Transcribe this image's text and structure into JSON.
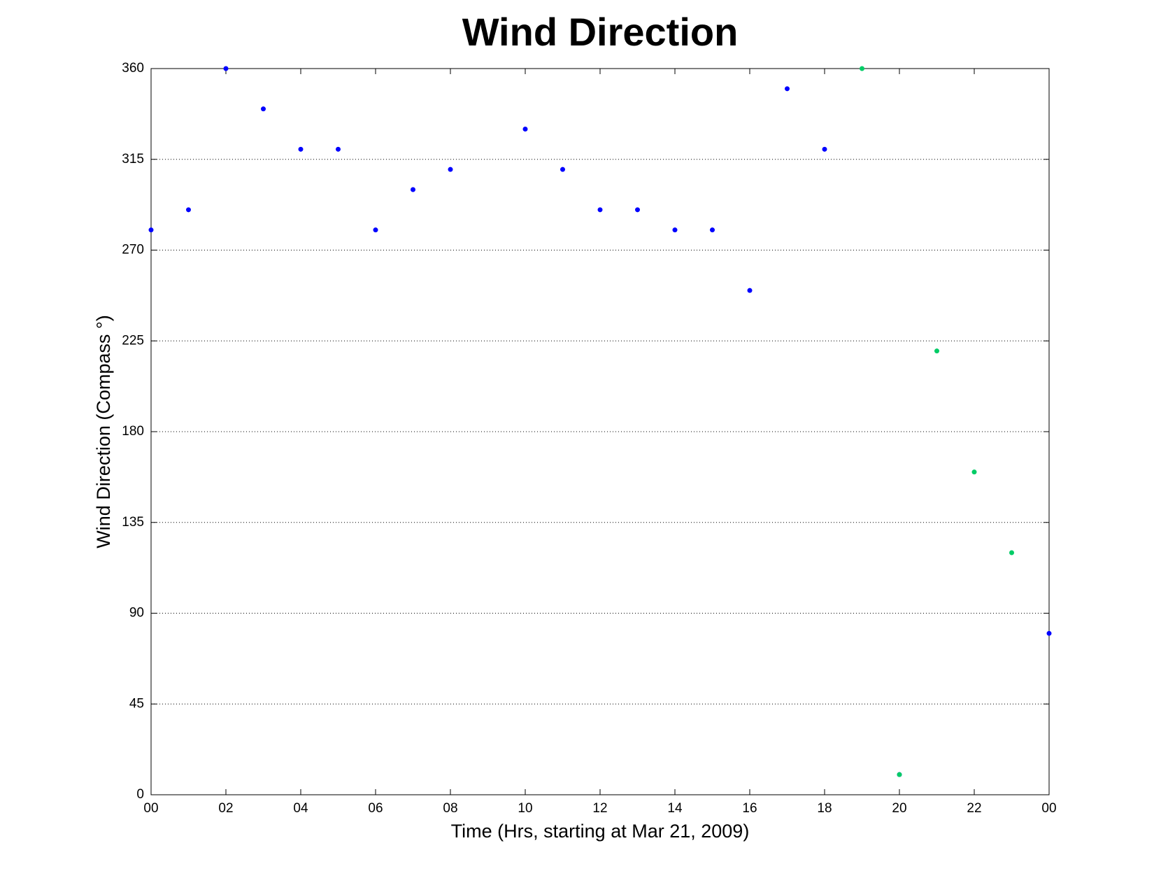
{
  "chart_data": {
    "type": "scatter",
    "title": "Wind Direction",
    "x_label": "Time (Hrs, starting at Mar 21, 2009)",
    "y_label": "Wind Direction (Compass °)",
    "series": [
      {
        "color": "#0000ff",
        "x": [
          0,
          1,
          2,
          3,
          4,
          5,
          6,
          7,
          8,
          10,
          11,
          12,
          13,
          14,
          15,
          16,
          17,
          18,
          20,
          24
        ],
        "values": [
          280,
          290,
          360,
          340,
          320,
          320,
          280,
          300,
          310,
          330,
          310,
          290,
          290,
          280,
          280,
          250,
          350,
          320,
          10,
          80
        ]
      },
      {
        "color": "#00cc66",
        "x": [
          19,
          20,
          21,
          22,
          23
        ],
        "values": [
          360,
          10,
          220,
          160,
          120
        ]
      }
    ],
    "xlim": [
      0,
      24
    ],
    "xticks": [
      {
        "value": 0,
        "label": "00"
      },
      {
        "value": 2,
        "label": "02"
      },
      {
        "value": 4,
        "label": "04"
      },
      {
        "value": 6,
        "label": "06"
      },
      {
        "value": 8,
        "label": "08"
      },
      10,
      12,
      14,
      16,
      18,
      20,
      22,
      {
        "value": 24,
        "label": "00"
      }
    ],
    "ylim": [
      0,
      360
    ],
    "yticks": [
      0,
      45,
      90,
      135,
      180,
      225,
      270,
      315,
      360
    ],
    "grid": true
  }
}
